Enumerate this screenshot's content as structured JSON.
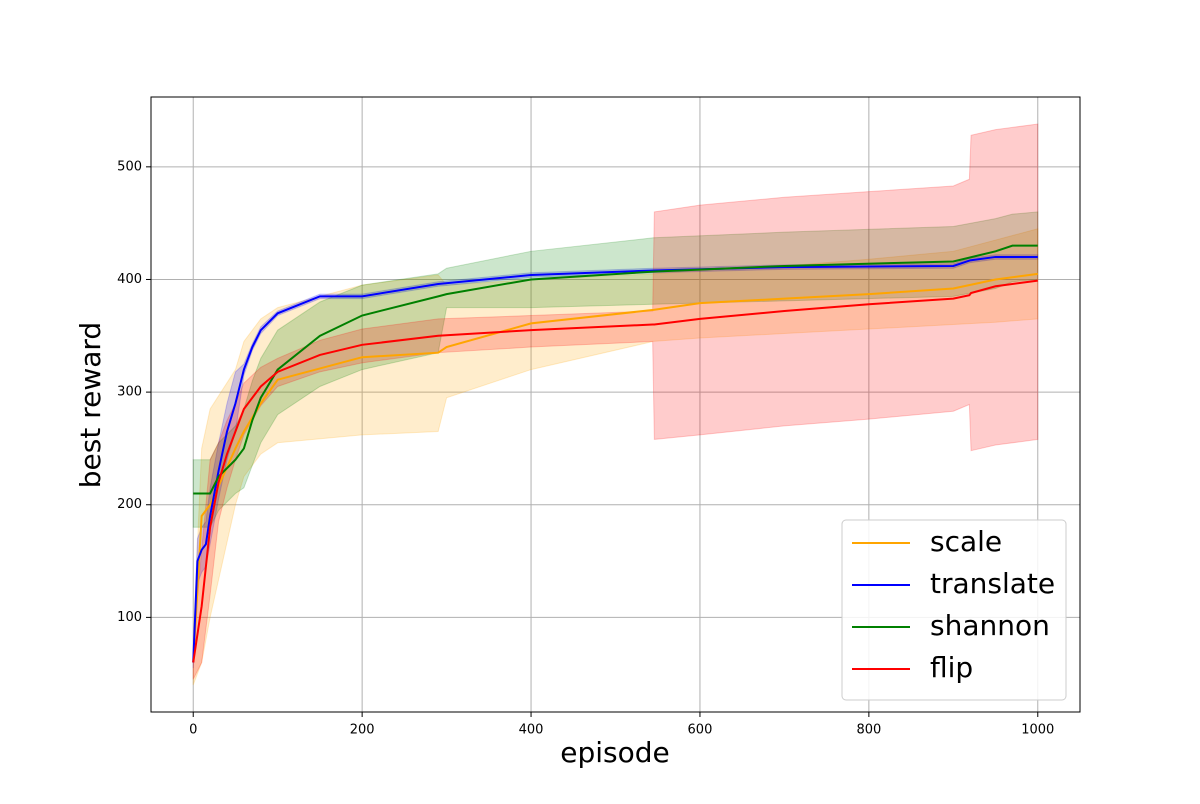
{
  "chart_data": {
    "type": "line",
    "xlabel": "episode",
    "ylabel": "best reward",
    "xlim": [
      -50,
      1050
    ],
    "ylim": [
      16,
      562
    ],
    "xticks": [
      0,
      200,
      400,
      600,
      800,
      1000
    ],
    "yticks": [
      100,
      200,
      300,
      400,
      500
    ],
    "grid": true,
    "legend": "lower right",
    "series": [
      {
        "name": "scale",
        "color": "orange",
        "x": [
          0,
          10,
          20,
          50,
          60,
          80,
          100,
          200,
          290,
          300,
          400,
          545,
          600,
          700,
          800,
          900,
          950,
          1000
        ],
        "values": [
          60,
          190,
          200,
          250,
          265,
          290,
          311,
          331,
          335,
          340,
          361,
          373,
          379,
          383,
          387,
          392,
          400,
          405
        ],
        "lower": [
          40,
          60,
          100,
          200,
          225,
          245,
          255,
          262,
          265,
          295,
          320,
          345,
          348,
          352,
          356,
          360,
          362,
          365
        ],
        "upper": [
          80,
          250,
          285,
          320,
          345,
          365,
          375,
          395,
          404,
          395,
          400,
          405,
          408,
          412,
          418,
          425,
          435,
          445
        ]
      },
      {
        "name": "translate",
        "color": "blue",
        "x": [
          0,
          5,
          10,
          15,
          20,
          30,
          40,
          50,
          60,
          70,
          80,
          100,
          150,
          200,
          290,
          400,
          545,
          700,
          900,
          920,
          950,
          1000
        ],
        "values": [
          60,
          150,
          160,
          165,
          190,
          230,
          265,
          290,
          320,
          340,
          355,
          370,
          385,
          385,
          396,
          404,
          408,
          411,
          412,
          417,
          420,
          420
        ],
        "lower": [
          55,
          130,
          140,
          145,
          165,
          205,
          240,
          265,
          315,
          337,
          352,
          368,
          383,
          383,
          394,
          402,
          406,
          409,
          410,
          415,
          418,
          418
        ],
        "upper": [
          65,
          170,
          180,
          185,
          215,
          255,
          290,
          318,
          325,
          343,
          358,
          372,
          387,
          387,
          398,
          406,
          410,
          413,
          414,
          419,
          422,
          422
        ]
      },
      {
        "name": "shannon",
        "color": "green",
        "x": [
          0,
          20,
          30,
          50,
          60,
          70,
          80,
          100,
          150,
          200,
          290,
          300,
          400,
          545,
          700,
          900,
          950,
          970,
          1000
        ],
        "values": [
          210,
          210,
          225,
          240,
          250,
          275,
          295,
          320,
          350,
          368,
          385,
          387,
          400,
          407,
          412,
          416,
          425,
          430,
          430
        ],
        "lower": [
          180,
          180,
          195,
          210,
          215,
          235,
          255,
          280,
          305,
          320,
          335,
          375,
          375,
          378,
          381,
          385,
          392,
          398,
          400
        ],
        "upper": [
          240,
          240,
          255,
          270,
          285,
          310,
          330,
          355,
          380,
          395,
          405,
          410,
          425,
          437,
          442,
          447,
          454,
          458,
          460
        ]
      },
      {
        "name": "flip",
        "color": "red",
        "x": [
          0,
          10,
          20,
          30,
          40,
          50,
          60,
          80,
          100,
          150,
          200,
          290,
          400,
          544,
          546,
          600,
          700,
          800,
          900,
          919,
          921,
          950,
          1000
        ],
        "values": [
          60,
          110,
          180,
          220,
          245,
          265,
          285,
          305,
          318,
          333,
          342,
          350,
          355,
          360,
          360,
          365,
          372,
          378,
          383,
          386,
          388,
          394,
          399
        ],
        "lower": [
          45,
          60,
          120,
          185,
          215,
          240,
          262,
          288,
          305,
          318,
          326,
          335,
          340,
          345,
          258,
          262,
          270,
          276,
          283,
          289,
          248,
          253,
          258
        ],
        "upper": [
          75,
          160,
          240,
          255,
          275,
          290,
          308,
          322,
          330,
          346,
          356,
          365,
          368,
          372,
          460,
          466,
          473,
          478,
          483,
          489,
          528,
          533,
          538
        ]
      }
    ]
  }
}
